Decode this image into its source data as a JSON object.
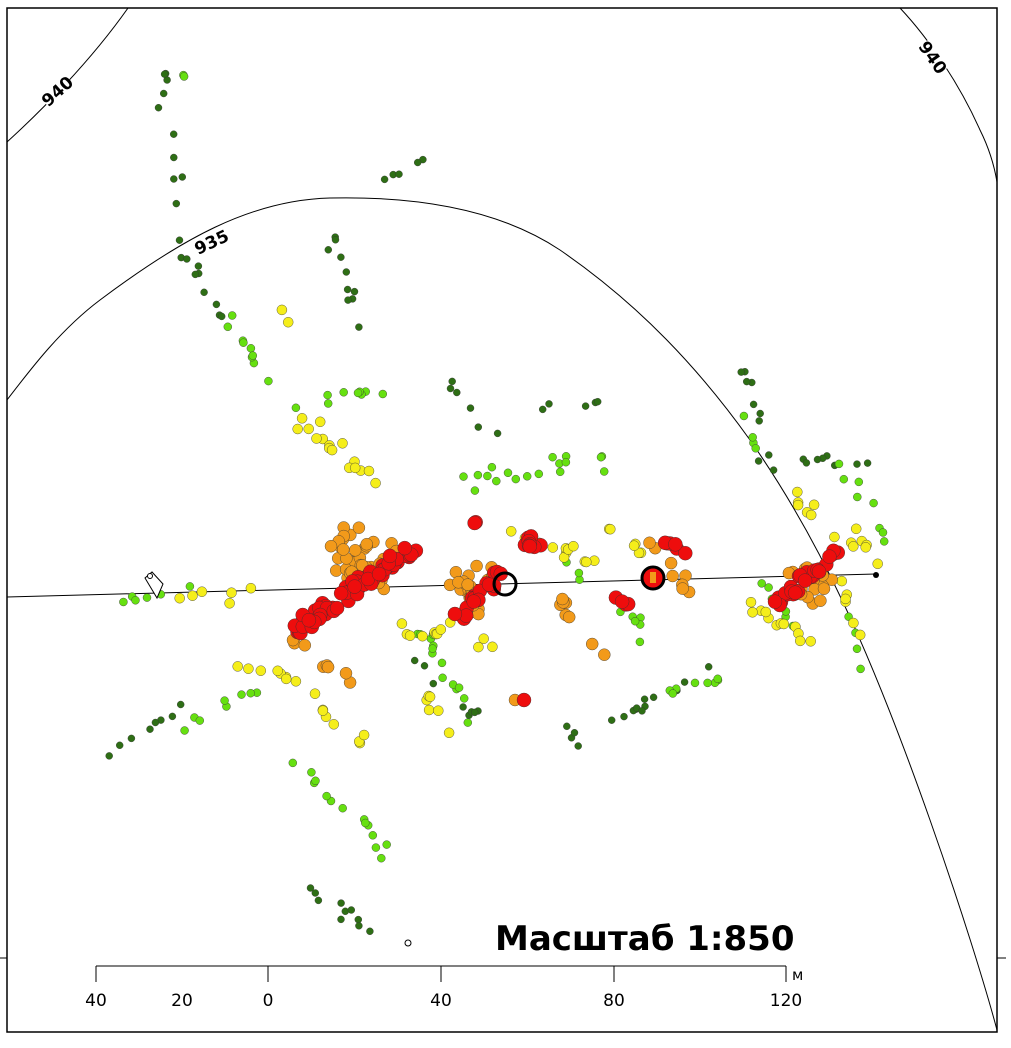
{
  "map": {
    "contour_labels": [
      "940",
      "935",
      "940"
    ],
    "scale_title": "Масштаб 1:850",
    "scale_ticks": [
      "40",
      "20",
      "0",
      "40",
      "80",
      "120"
    ],
    "scale_unit": "м"
  },
  "colors": {
    "very_low": "#2e6e15",
    "low": "#66e010",
    "medium": "#f5ee1a",
    "high": "#f29a1a",
    "very_high": "#ee0d0d",
    "contour": "#000000",
    "frame": "#000000"
  },
  "icons": [
    "house-marker-icon",
    "borehole-marker-icon"
  ]
}
